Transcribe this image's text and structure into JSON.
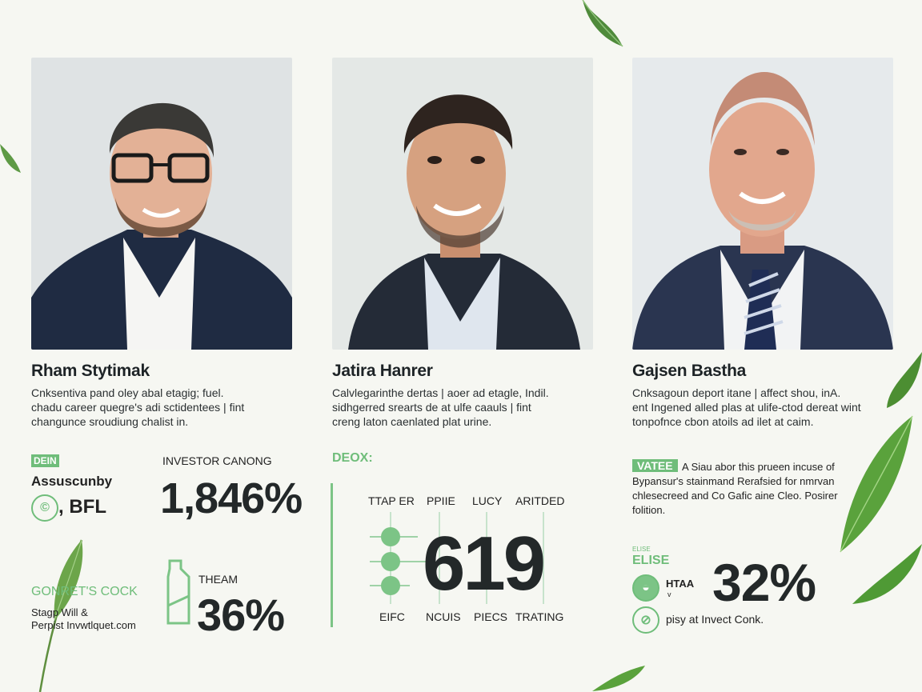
{
  "profiles": [
    {
      "name": "Rham Stytimak",
      "bio": [
        "Cnksentiva pand oley abal etagig; fuel.",
        "chadu career quegre's adi sctidentees | fint",
        "changunce sroudiung chalist in."
      ]
    },
    {
      "name": "Jatira Hanrer",
      "bio": [
        "Calvlegarinthe dertas | aoer ad etagle, Indil.",
        "sidhgerred srearts de at ulfe caauls | fint",
        "creng laton caenlated plat urine."
      ]
    },
    {
      "name": "Gajsen Bastha",
      "bio": [
        "Cnksagoun deport itane | affect shou, inA.",
        "ent Ingened alled plas at ulife-ctod dereat wint",
        "tonpofnce cbon atoils ad ilet at caim."
      ]
    }
  ],
  "panel_left": {
    "tag": "DEIN",
    "label1": "Assuscunby",
    "label2": ", BFL",
    "investor_label": "INVESTOR CANONG",
    "big_value": "1,846%",
    "green_heading": "GONRET'S COCK",
    "sub1": "Stagp Will &",
    "sub2": "Perpist Invwtlquet.com",
    "team_label": "THEAM",
    "team_value": "36%"
  },
  "panel_middle": {
    "heading": "DEOX:",
    "top_labels": [
      "TTAP ER",
      "PPIIE",
      "LUCY",
      "ARITDED"
    ],
    "big_value": "619",
    "bottom_labels": [
      "EIFC",
      "NCUIS",
      "PIECS",
      "TRATING"
    ]
  },
  "panel_right": {
    "tag": "VATEE",
    "line1": "A Siau abor this prueen incuse of",
    "line2": "Bypansur's stainmand Rerafsied for nmrvan",
    "line3": "chlesecreed and Co Gafic aine Cleo. Posirer",
    "line4": "folition.",
    "small_heading_top": "ELISE",
    "small_heading": "ELISE",
    "icon_label": "HTAA",
    "icon_sub": "v",
    "big_value": "32%",
    "footer": "pisy at Invect Conk."
  },
  "colors": {
    "accent": "#6fbd7a",
    "background": "#f6f7f2",
    "text": "#1d2326"
  }
}
